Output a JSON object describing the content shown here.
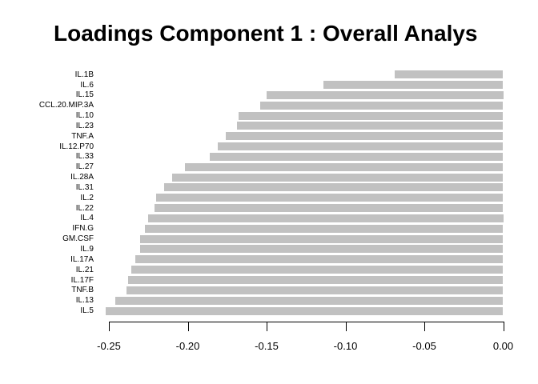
{
  "title": "Loadings Component 1 : Overall Analys",
  "colors": {
    "background": "#ffffff",
    "bar": "#c1c1c1",
    "axis": "#000000",
    "text": "#000000"
  },
  "chart_data": {
    "type": "bar",
    "orientation": "horizontal",
    "title": "Loadings Component 1 : Overall Analys",
    "xlabel": "",
    "ylabel": "",
    "categories": [
      "IL.1B",
      "IL.6",
      "IL.15",
      "CCL.20.MIP.3A",
      "IL.10",
      "IL.23",
      "TNF.A",
      "IL.12.P70",
      "IL.33",
      "IL.27",
      "IL.28A",
      "IL.31",
      "IL.2",
      "IL.22",
      "IL.4",
      "IFN.G",
      "GM.CSF",
      "IL.9",
      "IL.17A",
      "IL.21",
      "IL.17F",
      "TNF.B",
      "IL.13",
      "IL.5"
    ],
    "values": [
      -0.069,
      -0.114,
      -0.15,
      -0.154,
      -0.168,
      -0.169,
      -0.176,
      -0.181,
      -0.186,
      -0.202,
      -0.21,
      -0.215,
      -0.22,
      -0.221,
      -0.225,
      -0.227,
      -0.23,
      -0.23,
      -0.233,
      -0.236,
      -0.238,
      -0.239,
      -0.246,
      -0.252
    ],
    "xlim": [
      -0.25,
      0.0
    ],
    "x_ticks": [
      -0.25,
      -0.2,
      -0.15,
      -0.1,
      -0.05,
      0.0
    ],
    "x_tick_labels": [
      "-0.25",
      "-0.20",
      "-0.15",
      "-0.10",
      "-0.05",
      "0.00"
    ],
    "grid": false,
    "legend": false,
    "bar_color": "#c1c1c1"
  }
}
